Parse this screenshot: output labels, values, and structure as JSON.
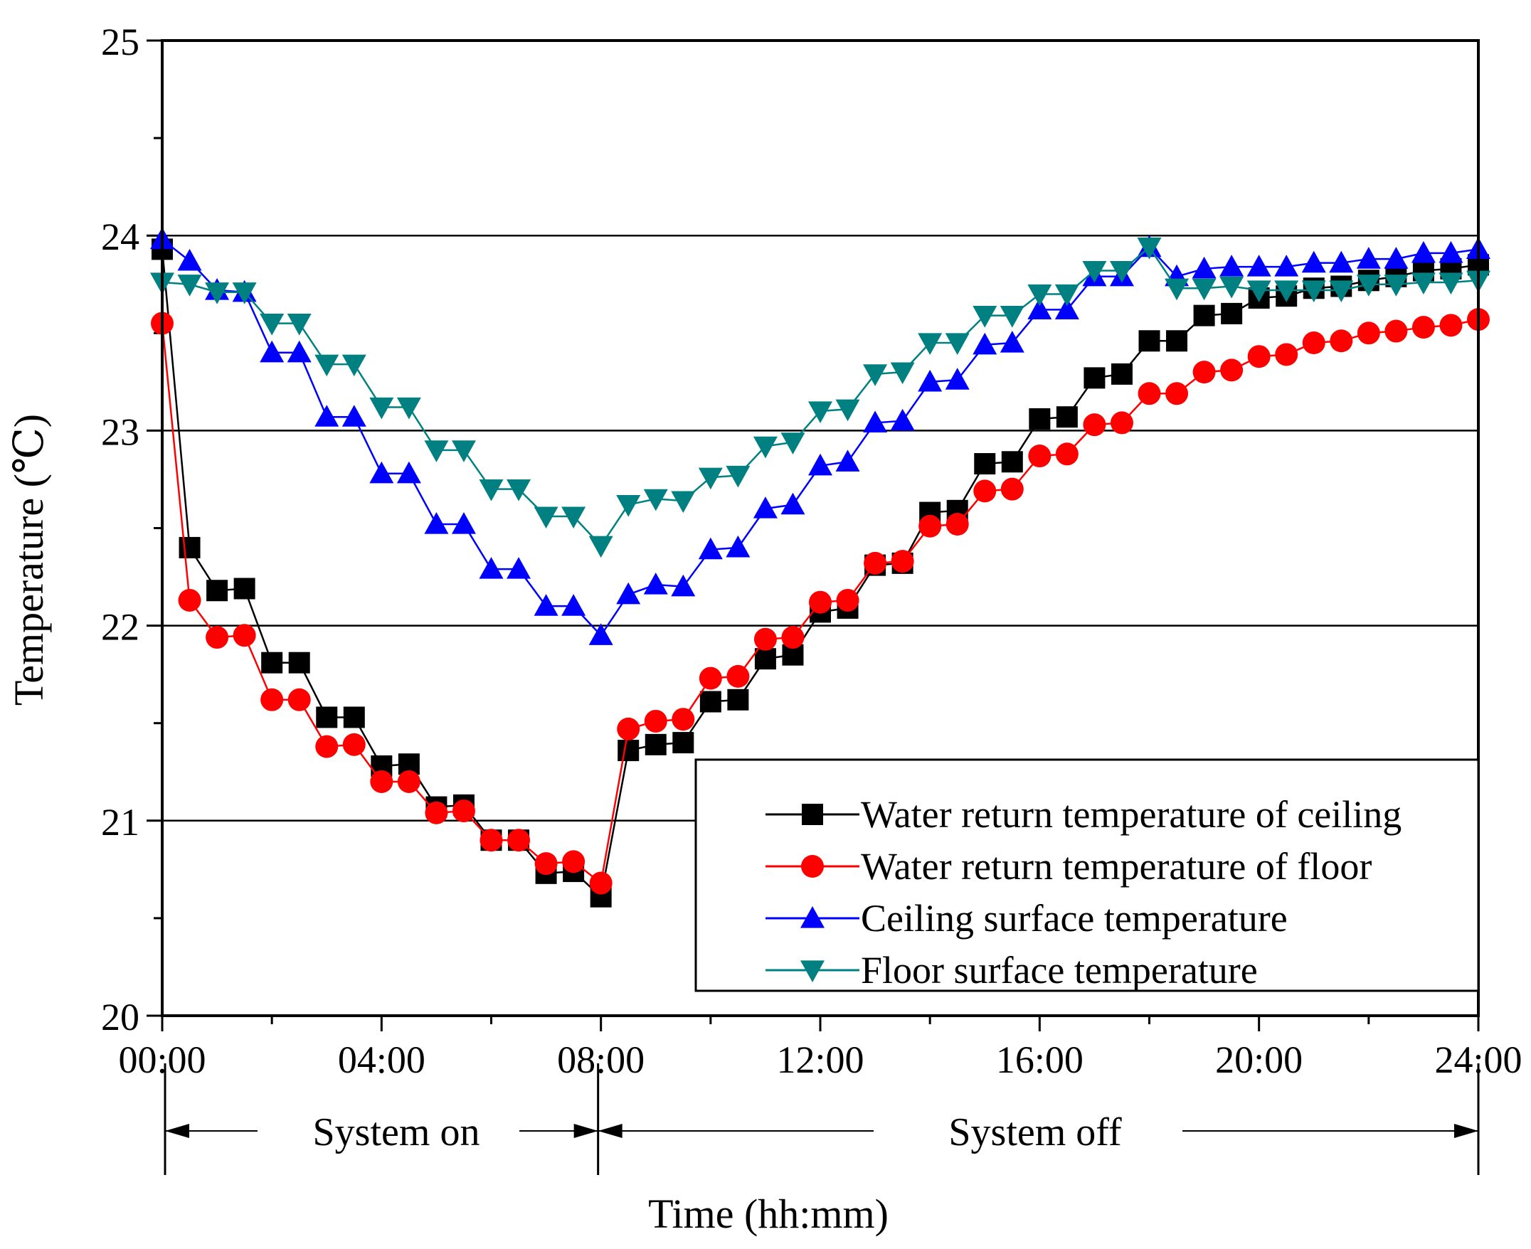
{
  "chart_data": {
    "type": "line",
    "title": "",
    "xlabel": "Time (hh:mm)",
    "ylabel": "Temperature (℃)",
    "xlim": [
      0,
      24
    ],
    "ylim": [
      20,
      25
    ],
    "x_ticks": [
      {
        "value": 0,
        "label": "00:00"
      },
      {
        "value": 4,
        "label": "04:00"
      },
      {
        "value": 8,
        "label": "08:00"
      },
      {
        "value": 12,
        "label": "12:00"
      },
      {
        "value": 16,
        "label": "16:00"
      },
      {
        "value": 20,
        "label": "20:00"
      },
      {
        "value": 24,
        "label": "24:00"
      }
    ],
    "y_ticks": [
      {
        "value": 20,
        "label": "20"
      },
      {
        "value": 21,
        "label": "21"
      },
      {
        "value": 22,
        "label": "22"
      },
      {
        "value": 23,
        "label": "23"
      },
      {
        "value": 24,
        "label": "24"
      },
      {
        "value": 25,
        "label": "25"
      }
    ],
    "gridlines_y": [
      21,
      22,
      23,
      24
    ],
    "legend_position": "bottom-right",
    "period_annotations": [
      {
        "label": "System on",
        "start": 0,
        "end": 8
      },
      {
        "label": "System off",
        "start": 8,
        "end": 24
      }
    ],
    "x": [
      0,
      0.5,
      1,
      1.5,
      2,
      2.5,
      3,
      3.5,
      4,
      4.5,
      5,
      5.5,
      6,
      6.5,
      7,
      7.5,
      8,
      8.5,
      9,
      9.5,
      10,
      10.5,
      11,
      11.5,
      12,
      12.5,
      13,
      13.5,
      14,
      14.5,
      15,
      15.5,
      16,
      16.5,
      17,
      17.5,
      18,
      18.5,
      19,
      19.5,
      20,
      20.5,
      21,
      21.5,
      22,
      22.5,
      23,
      23.5,
      24
    ],
    "series": [
      {
        "name": "Water return temperature of ceiling",
        "color": "#000000",
        "marker": "square",
        "values": [
          23.93,
          22.4,
          22.18,
          22.19,
          21.81,
          21.81,
          21.53,
          21.53,
          21.28,
          21.29,
          21.07,
          21.08,
          20.9,
          20.9,
          20.73,
          20.74,
          20.61,
          21.36,
          21.39,
          21.4,
          21.61,
          21.62,
          21.83,
          21.85,
          22.07,
          22.09,
          22.31,
          22.32,
          22.58,
          22.59,
          22.83,
          22.84,
          23.06,
          23.07,
          23.27,
          23.29,
          23.46,
          23.46,
          23.59,
          23.6,
          23.68,
          23.69,
          23.73,
          23.74,
          23.77,
          23.79,
          23.82,
          23.83,
          23.85
        ]
      },
      {
        "name": "Water return temperature of floor",
        "color": "#ff0000",
        "marker": "circle",
        "values": [
          23.55,
          22.13,
          21.94,
          21.95,
          21.62,
          21.62,
          21.38,
          21.39,
          21.2,
          21.2,
          21.04,
          21.05,
          20.9,
          20.9,
          20.78,
          20.79,
          20.68,
          21.47,
          21.51,
          21.52,
          21.73,
          21.74,
          21.93,
          21.94,
          22.12,
          22.13,
          22.32,
          22.33,
          22.51,
          22.52,
          22.69,
          22.7,
          22.87,
          22.88,
          23.03,
          23.04,
          23.19,
          23.19,
          23.3,
          23.31,
          23.38,
          23.39,
          23.45,
          23.46,
          23.5,
          23.51,
          23.53,
          23.54,
          23.57
        ]
      },
      {
        "name": "Ceiling surface temperature",
        "color": "#0000ff",
        "marker": "triangle-up",
        "values": [
          23.98,
          23.87,
          23.72,
          23.71,
          23.4,
          23.4,
          23.07,
          23.07,
          22.78,
          22.78,
          22.52,
          22.52,
          22.29,
          22.29,
          22.1,
          22.1,
          21.95,
          22.16,
          22.21,
          22.2,
          22.39,
          22.4,
          22.6,
          22.62,
          22.82,
          22.84,
          23.04,
          23.05,
          23.25,
          23.26,
          23.44,
          23.45,
          23.62,
          23.62,
          23.79,
          23.79,
          23.94,
          23.79,
          23.83,
          23.84,
          23.84,
          23.84,
          23.86,
          23.86,
          23.88,
          23.88,
          23.91,
          23.91,
          23.93
        ]
      },
      {
        "name": "Floor surface temperature",
        "color": "#008080",
        "marker": "triangle-down",
        "values": [
          23.76,
          23.75,
          23.71,
          23.71,
          23.55,
          23.55,
          23.34,
          23.34,
          23.12,
          23.12,
          22.9,
          22.9,
          22.7,
          22.7,
          22.56,
          22.56,
          22.41,
          22.62,
          22.65,
          22.64,
          22.76,
          22.77,
          22.92,
          22.94,
          23.1,
          23.11,
          23.29,
          23.3,
          23.45,
          23.45,
          23.59,
          23.59,
          23.7,
          23.7,
          23.82,
          23.82,
          23.94,
          23.73,
          23.73,
          23.74,
          23.72,
          23.72,
          23.72,
          23.72,
          23.75,
          23.75,
          23.76,
          23.76,
          23.77
        ]
      }
    ]
  }
}
